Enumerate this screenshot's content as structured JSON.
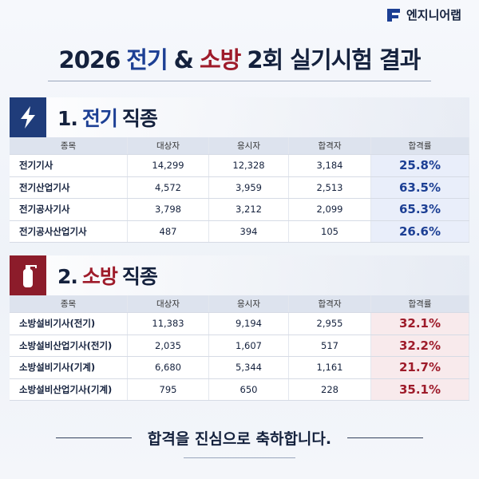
{
  "brand": "엔지니어랩",
  "title": [
    "2026",
    "전기",
    "&",
    "소방",
    "2회 실기시험 결과"
  ],
  "sections": [
    {
      "number": "1.",
      "name": "전기",
      "suffix": "직종",
      "header": [
        "종목",
        "대상자",
        "응시자",
        "합격자",
        "합격률"
      ],
      "rows": [
        [
          "전기기사",
          "14,299",
          "12,328",
          "3,184",
          "25.8%"
        ],
        [
          "전기산업기사",
          "4,572",
          "3,959",
          "2,513",
          "63.5%"
        ],
        [
          "전기공사기사",
          "3,798",
          "3,212",
          "2,099",
          "65.3%"
        ],
        [
          "전기공사산업기사",
          "487",
          "394",
          "105",
          "26.6%"
        ]
      ]
    },
    {
      "number": "2.",
      "name": "소방",
      "suffix": "직종",
      "header": [
        "종목",
        "대상자",
        "응시자",
        "합격자",
        "합격률"
      ],
      "rows": [
        [
          "소방설비기사(전기)",
          "11,383",
          "9,194",
          "2,955",
          "32.1%"
        ],
        [
          "소방설비산업기사(전기)",
          "2,035",
          "1,607",
          "517",
          "32.2%"
        ],
        [
          "소방설비기사(기계)",
          "6,680",
          "5,344",
          "1,161",
          "21.7%"
        ],
        [
          "소방설비산업기사(기계)",
          "795",
          "650",
          "228",
          "35.1%"
        ]
      ]
    }
  ],
  "footer": "합격을 진심으로 축하합니다."
}
